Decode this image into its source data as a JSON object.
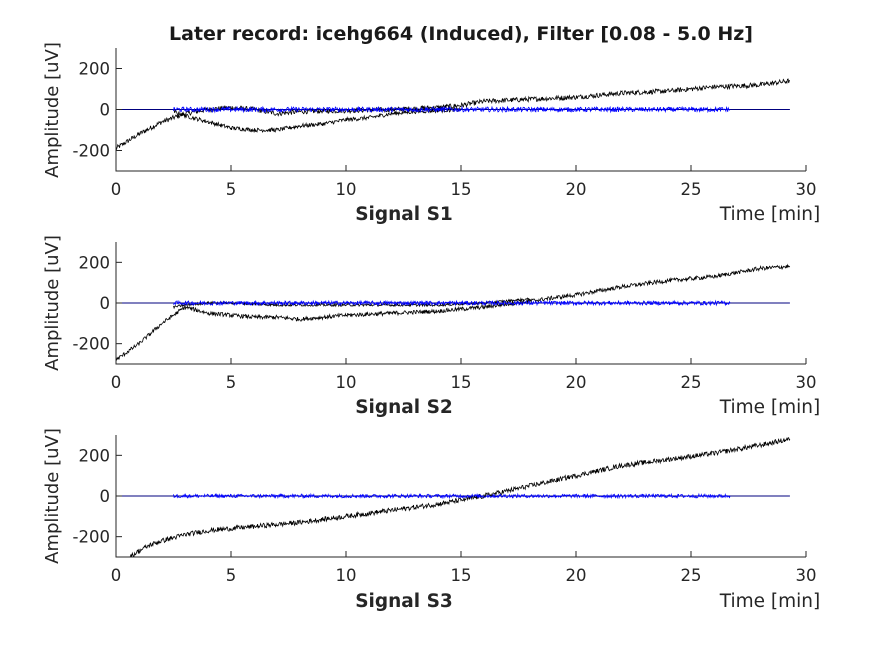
{
  "figure": {
    "title": "Later record: icehg664 (Induced), Filter [0.08 - 5.0 Hz]"
  },
  "chart_data": [
    {
      "type": "line",
      "name": "Signal S1",
      "xlabel": "Time [min]",
      "ylabel": "Amplitude [uV]",
      "xlim": [
        0,
        30
      ],
      "ylim": [
        -300,
        300
      ],
      "xticks": [
        0,
        5,
        10,
        15,
        20,
        25,
        30
      ],
      "yticks": [
        -200,
        0,
        200
      ],
      "zero_line": {
        "x": [
          0,
          29.3
        ],
        "y": 0,
        "color": "#00007f"
      },
      "series": [
        {
          "color": "#000000",
          "x": [
            0,
            1,
            2,
            3,
            4,
            5,
            6,
            7,
            8,
            10,
            12,
            14,
            15,
            16,
            18,
            20,
            22,
            24,
            26,
            28,
            29.3
          ],
          "y": [
            -190,
            -120,
            -60,
            -20,
            0,
            10,
            0,
            -20,
            -10,
            -5,
            0,
            10,
            20,
            40,
            50,
            60,
            80,
            90,
            110,
            120,
            140
          ],
          "noise": 12
        },
        {
          "color": "#000000",
          "x": [
            2.5,
            3,
            4,
            5,
            6,
            7,
            8,
            9,
            10,
            11,
            12,
            13,
            14,
            15
          ],
          "y": [
            -10,
            -30,
            -60,
            -90,
            -100,
            -100,
            -80,
            -70,
            -50,
            -40,
            -20,
            -10,
            -5,
            0
          ],
          "noise": 10
        },
        {
          "color": "#0000ff",
          "x": [
            2.5,
            26.7
          ],
          "y": [
            0,
            0
          ],
          "noise": 12
        }
      ]
    },
    {
      "type": "line",
      "name": "Signal S2",
      "xlabel": "Time [min]",
      "ylabel": "Amplitude [uV]",
      "xlim": [
        0,
        30
      ],
      "ylim": [
        -300,
        300
      ],
      "xticks": [
        0,
        5,
        10,
        15,
        20,
        25,
        30
      ],
      "yticks": [
        -200,
        0,
        200
      ],
      "zero_line": {
        "x": [
          0,
          29.3
        ],
        "y": 0,
        "color": "#00007f"
      },
      "series": [
        {
          "color": "#000000",
          "x": [
            0,
            0.5,
            1,
            1.5,
            2,
            2.5,
            3,
            4,
            5,
            6,
            7,
            8,
            9,
            10,
            12,
            14,
            16,
            18,
            20,
            22,
            24,
            26,
            28,
            29.3
          ],
          "y": [
            -280,
            -240,
            -200,
            -150,
            -100,
            -60,
            -20,
            -50,
            -60,
            -70,
            -70,
            -80,
            -70,
            -60,
            -50,
            -40,
            -20,
            10,
            40,
            80,
            110,
            130,
            170,
            180
          ],
          "noise": 10
        },
        {
          "color": "#000000",
          "x": [
            2.5,
            3,
            4,
            5,
            7,
            10,
            12,
            14,
            16,
            17,
            18
          ],
          "y": [
            -20,
            -10,
            0,
            0,
            -10,
            -10,
            -10,
            -10,
            0,
            10,
            20
          ],
          "noise": 6
        },
        {
          "color": "#0000ff",
          "x": [
            2.5,
            26.7
          ],
          "y": [
            0,
            0
          ],
          "noise": 10
        }
      ]
    },
    {
      "type": "line",
      "name": "Signal S3",
      "xlabel": "Time [min]",
      "ylabel": "Amplitude [uV]",
      "xlim": [
        0,
        30
      ],
      "ylim": [
        -300,
        300
      ],
      "xticks": [
        0,
        5,
        10,
        15,
        20,
        25,
        30
      ],
      "yticks": [
        -200,
        0,
        200
      ],
      "zero_line": {
        "x": [
          0,
          29.3
        ],
        "y": 0,
        "color": "#00007f"
      },
      "series": [
        {
          "color": "#000000",
          "x": [
            0.6,
            1,
            1.5,
            2,
            3,
            4,
            5,
            6,
            8,
            10,
            12,
            14,
            15,
            16,
            18,
            20,
            22,
            24,
            26,
            28,
            29.3
          ],
          "y": [
            -300,
            -270,
            -240,
            -220,
            -190,
            -170,
            -160,
            -150,
            -130,
            -100,
            -70,
            -40,
            -20,
            0,
            50,
            100,
            150,
            180,
            210,
            250,
            280
          ],
          "noise": 12
        },
        {
          "color": "#0000ff",
          "x": [
            2.5,
            26.7
          ],
          "y": [
            0,
            0
          ],
          "noise": 9
        }
      ]
    }
  ]
}
